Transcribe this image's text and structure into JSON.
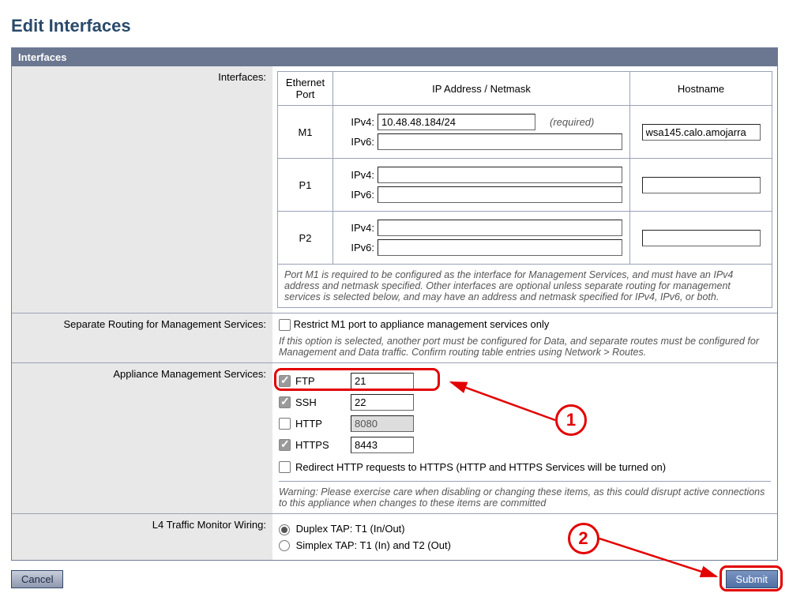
{
  "page": {
    "title": "Edit Interfaces"
  },
  "section": {
    "header": "Interfaces"
  },
  "rows": {
    "interfaces_label": "Interfaces:",
    "routing_label": "Separate Routing for Management Services:",
    "services_label": "Appliance Management Services:",
    "l4_label": "L4 Traffic Monitor Wiring:"
  },
  "iftable": {
    "headers": {
      "port": "Ethernet Port",
      "ip": "IP Address / Netmask",
      "host": "Hostname"
    },
    "ipv4_label": "IPv4:",
    "ipv6_label": "IPv6:",
    "required": "(required)",
    "ports": {
      "m1": {
        "name": "M1",
        "ipv4": "10.48.48.184/24",
        "ipv6": "",
        "hostname": "wsa145.calo.amojarra"
      },
      "p1": {
        "name": "P1",
        "ipv4": "",
        "ipv6": "",
        "hostname": ""
      },
      "p2": {
        "name": "P2",
        "ipv4": "",
        "ipv6": "",
        "hostname": ""
      }
    },
    "note": "Port M1 is required to be configured as the interface for Management Services, and must have an IPv4 address and netmask specified. Other interfaces are optional unless separate routing for management services is selected below, and may have an address and netmask specified for IPv4, IPv6, or both."
  },
  "routing": {
    "checkbox_label": "Restrict M1 port to appliance management services only",
    "checked": false,
    "note": "If this option is selected, another port must be configured for Data, and separate routes must be configured for Management and Data traffic. Confirm routing table entries using Network > Routes."
  },
  "services": {
    "ftp": {
      "label": "FTP",
      "checked": true,
      "port": "21",
      "disabled": false
    },
    "ssh": {
      "label": "SSH",
      "checked": true,
      "port": "22",
      "disabled": false
    },
    "http": {
      "label": "HTTP",
      "checked": false,
      "port": "8080",
      "disabled": true
    },
    "https": {
      "label": "HTTPS",
      "checked": true,
      "port": "8443",
      "disabled": false
    },
    "redirect": {
      "label": "Redirect HTTP requests to HTTPS (HTTP and HTTPS Services will be turned on)",
      "checked": false
    },
    "warning": "Warning: Please exercise care when disabling or changing these items, as this could disrupt active connections to this appliance when changes to these items are committed"
  },
  "l4": {
    "duplex": {
      "label": "Duplex TAP: T1 (In/Out)",
      "checked": true
    },
    "simplex": {
      "label": "Simplex TAP: T1 (In) and T2 (Out)",
      "checked": false
    }
  },
  "buttons": {
    "cancel": "Cancel",
    "submit": "Submit"
  },
  "annotations": {
    "a1": "1",
    "a2": "2",
    "colors": {
      "red": "#e30000"
    }
  }
}
